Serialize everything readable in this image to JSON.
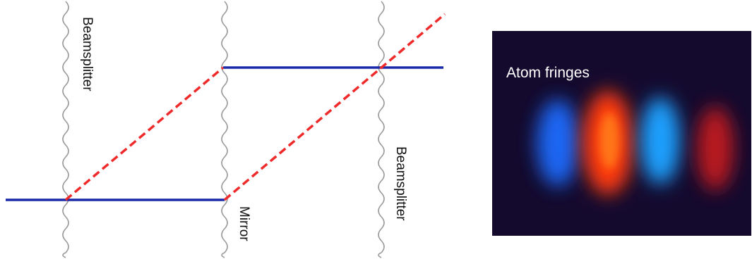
{
  "diagram": {
    "labels": {
      "beamsplitter_left": "Beamsplitter",
      "mirror": "Mirror",
      "beamsplitter_right": "Beamsplitter"
    },
    "colors": {
      "wave": "#9a9a9a",
      "beam_solid": "#1a2aa8",
      "beam_dashed": "#ee2a2a"
    }
  },
  "photo": {
    "label": "Atom fringes",
    "background": "#140a2e",
    "fringes": [
      {
        "name": "blue-fringe-1",
        "color": "#1a6cff"
      },
      {
        "name": "red-fringe-1",
        "color": "#ff3a10"
      },
      {
        "name": "blue-fringe-2",
        "color": "#1aa0ff"
      },
      {
        "name": "red-fringe-2",
        "color": "#d81a1a"
      }
    ]
  }
}
